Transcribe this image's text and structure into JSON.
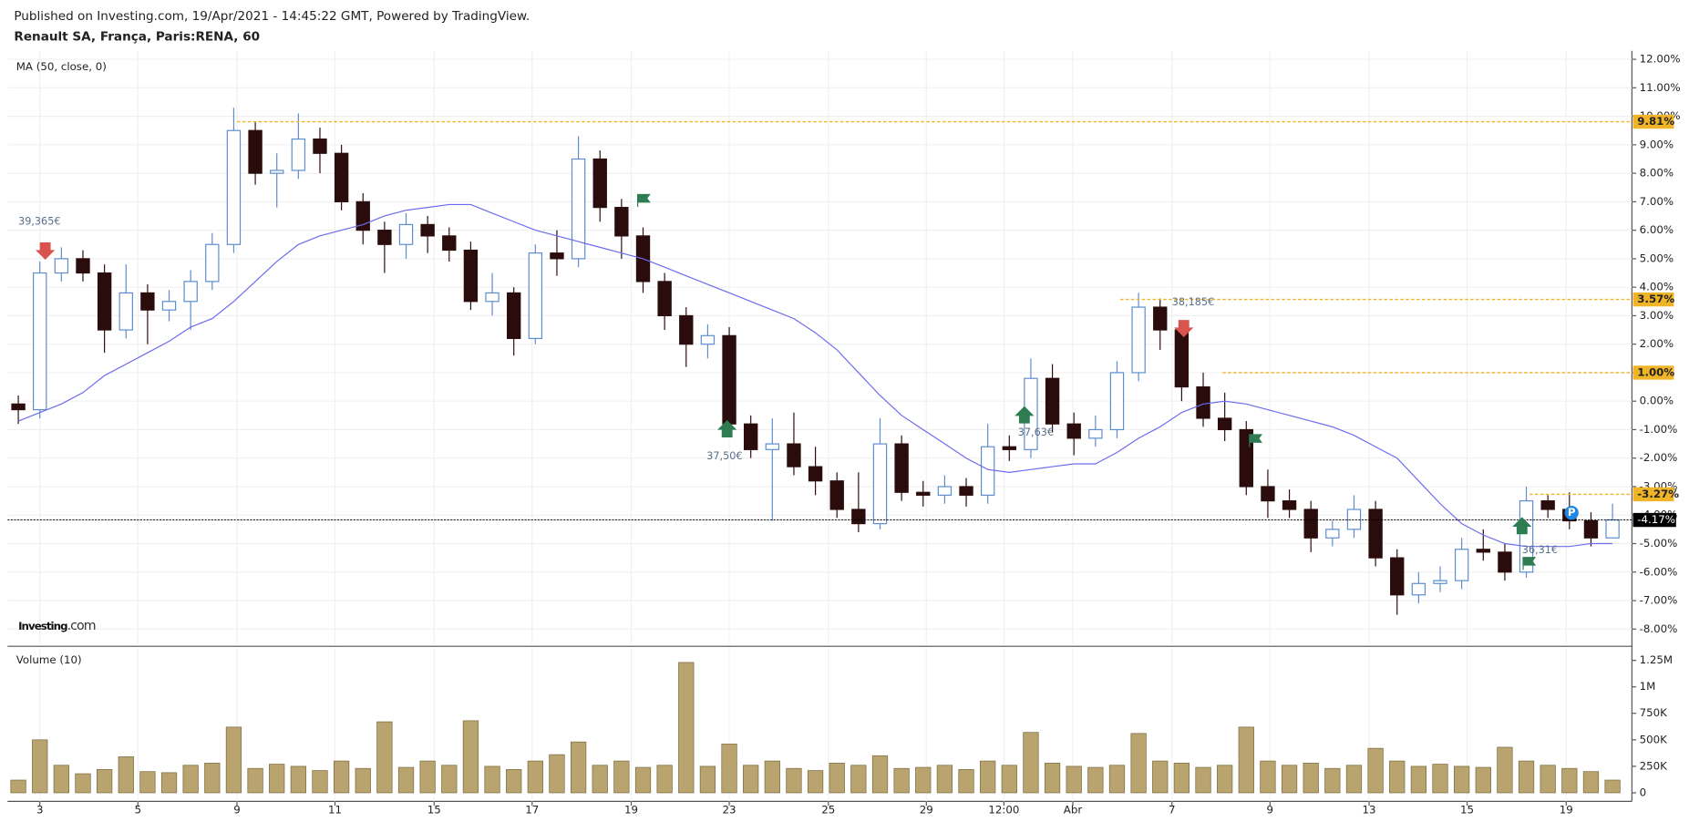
{
  "header": {
    "published": "Published on Investing.com, 19/Apr/2021 - 14:45:22 GMT, Powered by TradingView.",
    "symbol": "Renault SA, França, Paris:RENA, 60"
  },
  "chart_data": {
    "type": "candlestick",
    "indicator_label": "MA (50, close, 0)",
    "logo": "Investing",
    "logo_suffix": ".com",
    "xlim": [
      -0.5,
      74.9
    ],
    "xticks": [
      {
        "value": 1,
        "label": "3"
      },
      {
        "value": 5.55,
        "label": "5"
      },
      {
        "value": 10.15,
        "label": "9"
      },
      {
        "value": 14.7,
        "label": "11"
      },
      {
        "value": 19.3,
        "label": "15"
      },
      {
        "value": 23.85,
        "label": "17"
      },
      {
        "value": 28.45,
        "label": "19"
      },
      {
        "value": 33,
        "label": "23"
      },
      {
        "value": 37.6,
        "label": "25"
      },
      {
        "value": 42.15,
        "label": "29"
      },
      {
        "value": 45.75,
        "label": "12:00"
      },
      {
        "value": 48.95,
        "label": "Abr"
      },
      {
        "value": 53.55,
        "label": "7"
      },
      {
        "value": 58.1,
        "label": "9"
      },
      {
        "value": 62.7,
        "label": "13"
      },
      {
        "value": 67.25,
        "label": "15"
      },
      {
        "value": 71.85,
        "label": "19"
      }
    ],
    "ylim": [
      -8.53,
      12.3
    ],
    "yticks": [
      {
        "value": 12,
        "label": "12.00%"
      },
      {
        "value": 11,
        "label": "11.00%"
      },
      {
        "value": 10,
        "label": "10.00%"
      },
      {
        "value": 9,
        "label": "9.00%"
      },
      {
        "value": 8,
        "label": "8.00%"
      },
      {
        "value": 7,
        "label": "7.00%"
      },
      {
        "value": 6,
        "label": "6.00%"
      },
      {
        "value": 5,
        "label": "5.00%"
      },
      {
        "value": 4,
        "label": "4.00%"
      },
      {
        "value": 3,
        "label": "3.00%"
      },
      {
        "value": 2,
        "label": "2.00%"
      },
      {
        "value": 1,
        "label": "1.00%"
      },
      {
        "value": 0,
        "label": "0.00%"
      },
      {
        "value": -1,
        "label": "-1.00%"
      },
      {
        "value": -2,
        "label": "-2.00%"
      },
      {
        "value": -3,
        "label": "-3.00%"
      },
      {
        "value": -4,
        "label": "-4.00%"
      },
      {
        "value": -5,
        "label": "-5.00%"
      },
      {
        "value": -6,
        "label": "-6.00%"
      },
      {
        "value": -7,
        "label": "-7.00%"
      },
      {
        "value": -8,
        "label": "-8.00%"
      }
    ],
    "up_color": "#ffffff",
    "up_border": "#5b8ccf",
    "down_color": "#2a0c0c",
    "open": [
      -0.1,
      -0.3,
      4.5,
      5.0,
      4.5,
      2.5,
      3.8,
      3.2,
      3.5,
      4.2,
      5.5,
      9.5,
      8.0,
      8.1,
      9.2,
      8.7,
      7.0,
      6.0,
      5.5,
      6.2,
      5.8,
      5.3,
      3.5,
      3.8,
      2.2,
      5.2,
      5.0,
      8.5,
      6.8,
      5.8,
      4.2,
      3.0,
      2.0,
      2.3,
      -0.8,
      -1.7,
      -1.5,
      -2.3,
      -2.8,
      -3.8,
      -4.3,
      -1.5,
      -3.2,
      -3.3,
      -3.0,
      -3.3,
      -1.6,
      -1.7,
      0.8,
      -0.8,
      -1.3,
      -1.0,
      1.0,
      3.3,
      2.5,
      0.5,
      -0.6,
      -1.0,
      -3.0,
      -3.5,
      -3.8,
      -4.8,
      -4.5,
      -3.8,
      -5.5,
      -6.8,
      -6.4,
      -6.3,
      -5.2,
      -5.3,
      -6.0,
      -3.5,
      -3.8,
      -4.2,
      -4.8
    ],
    "high": [
      0.2,
      4.9,
      5.4,
      5.3,
      4.8,
      4.8,
      4.1,
      3.9,
      4.6,
      5.9,
      10.3,
      9.8,
      8.7,
      10.1,
      9.6,
      9.0,
      7.3,
      6.3,
      6.6,
      6.5,
      6.1,
      5.6,
      4.5,
      4.0,
      5.5,
      6.0,
      9.3,
      8.8,
      7.1,
      6.1,
      4.5,
      3.3,
      2.7,
      2.6,
      -0.5,
      -0.6,
      -0.4,
      -1.6,
      -2.5,
      -2.5,
      -0.6,
      -1.2,
      -2.8,
      -2.6,
      -2.7,
      -0.8,
      -1.2,
      1.5,
      1.3,
      -0.4,
      -0.5,
      1.4,
      3.8,
      3.6,
      2.8,
      1.0,
      0.3,
      -0.7,
      -2.4,
      -3.1,
      -3.5,
      -4.2,
      -3.3,
      -3.5,
      -5.2,
      -6.0,
      -5.8,
      -4.8,
      -4.5,
      -5.0,
      -3.0,
      -3.3,
      -3.2,
      -3.9,
      -3.6
    ],
    "low": [
      -0.8,
      -0.6,
      4.2,
      4.2,
      1.7,
      2.2,
      2.0,
      2.8,
      2.5,
      3.9,
      5.2,
      7.6,
      6.8,
      7.8,
      8.0,
      6.7,
      5.5,
      4.5,
      5.0,
      5.2,
      4.9,
      3.2,
      3.0,
      1.6,
      2.0,
      4.4,
      4.7,
      6.3,
      5.0,
      3.8,
      2.5,
      1.2,
      1.5,
      -1.2,
      -2.0,
      -4.2,
      -2.6,
      -3.3,
      -4.1,
      -4.6,
      -4.5,
      -3.5,
      -3.7,
      -3.6,
      -3.7,
      -3.6,
      -2.1,
      -2.0,
      -1.1,
      -1.9,
      -1.6,
      -1.3,
      0.7,
      1.8,
      0.0,
      -0.9,
      -1.4,
      -3.3,
      -4.1,
      -4.1,
      -5.3,
      -5.1,
      -4.8,
      -5.8,
      -7.5,
      -7.1,
      -6.7,
      -6.6,
      -5.6,
      -6.3,
      -6.2,
      -4.1,
      -4.5,
      -5.1,
      -4.6
    ],
    "close": [
      -0.3,
      4.5,
      5.0,
      4.5,
      2.5,
      3.8,
      3.2,
      3.5,
      4.2,
      5.5,
      9.5,
      8.0,
      8.1,
      9.2,
      8.7,
      7.0,
      6.0,
      5.5,
      6.2,
      5.8,
      5.3,
      3.5,
      3.8,
      2.2,
      5.2,
      5.0,
      8.5,
      6.8,
      5.8,
      4.2,
      3.0,
      2.0,
      2.3,
      -0.8,
      -1.7,
      -1.5,
      -2.3,
      -2.8,
      -3.8,
      -4.3,
      -1.5,
      -3.2,
      -3.3,
      -3.0,
      -3.3,
      -1.6,
      -1.7,
      0.8,
      -0.8,
      -1.3,
      -1.0,
      1.0,
      3.3,
      2.5,
      0.5,
      -0.6,
      -1.0,
      -3.0,
      -3.5,
      -3.8,
      -4.8,
      -4.5,
      -3.8,
      -5.5,
      -6.8,
      -6.4,
      -6.3,
      -5.2,
      -5.3,
      -6.0,
      -3.5,
      -3.8,
      -4.2,
      -4.8,
      -4.17
    ],
    "ma": {
      "color": "#6b6bf0",
      "values": [
        -0.7,
        -0.4,
        -0.1,
        0.3,
        0.9,
        1.3,
        1.7,
        2.1,
        2.6,
        2.9,
        3.5,
        4.2,
        4.9,
        5.5,
        5.8,
        6.0,
        6.2,
        6.5,
        6.7,
        6.8,
        6.9,
        6.9,
        6.6,
        6.3,
        6.0,
        5.8,
        5.6,
        5.4,
        5.2,
        5.0,
        4.7,
        4.4,
        4.1,
        3.8,
        3.5,
        3.2,
        2.9,
        2.4,
        1.8,
        1.0,
        0.2,
        -0.5,
        -1.0,
        -1.5,
        -2.0,
        -2.4,
        -2.5,
        -2.4,
        -2.3,
        -2.2,
        -2.2,
        -1.8,
        -1.3,
        -0.9,
        -0.4,
        -0.1,
        0.0,
        -0.1,
        -0.3,
        -0.5,
        -0.7,
        -0.9,
        -1.2,
        -1.6,
        -2.0,
        -2.8,
        -3.6,
        -4.3,
        -4.7,
        -5.0,
        -5.1,
        -5.1,
        -5.1,
        -5.0,
        -5.0
      ]
    },
    "levels": [
      {
        "value": 9.81,
        "label": "9.81%"
      },
      {
        "value": 3.57,
        "label": "3.57%"
      },
      {
        "value": 1.0,
        "label": "1.00%"
      },
      {
        "value": -3.27,
        "label": "-3.27%"
      }
    ],
    "level_color": "#f0b429",
    "last": {
      "value": -4.17,
      "label": "-4.17%"
    },
    "annotations": [
      "39,365€",
      "37,50€",
      "37,63€",
      "38,185€",
      "36,31€"
    ],
    "marker_p": "P",
    "volume": {
      "label": "Volume (10)",
      "color": "#b9a36f",
      "values": [
        120000,
        500000,
        260000,
        180000,
        220000,
        340000,
        200000,
        190000,
        260000,
        280000,
        620000,
        230000,
        270000,
        250000,
        210000,
        300000,
        230000,
        670000,
        240000,
        300000,
        260000,
        680000,
        250000,
        220000,
        300000,
        360000,
        480000,
        260000,
        300000,
        240000,
        260000,
        1230000,
        250000,
        460000,
        260000,
        300000,
        230000,
        210000,
        280000,
        260000,
        350000,
        230000,
        240000,
        260000,
        220000,
        300000,
        260000,
        570000,
        280000,
        250000,
        240000,
        260000,
        560000,
        300000,
        280000,
        240000,
        260000,
        620000,
        300000,
        260000,
        280000,
        230000,
        260000,
        420000,
        300000,
        250000,
        270000,
        250000,
        240000,
        430000,
        300000,
        260000,
        230000,
        200000,
        120000
      ],
      "ylim": [
        -81000,
        1362000
      ],
      "yticks": [
        {
          "value": 0,
          "label": "0"
        },
        {
          "value": 250000,
          "label": "250K"
        },
        {
          "value": 500000,
          "label": "500K"
        },
        {
          "value": 750000,
          "label": "750K"
        },
        {
          "value": 1000000,
          "label": "1M"
        },
        {
          "value": 1250000,
          "label": "1.25M"
        }
      ]
    }
  }
}
